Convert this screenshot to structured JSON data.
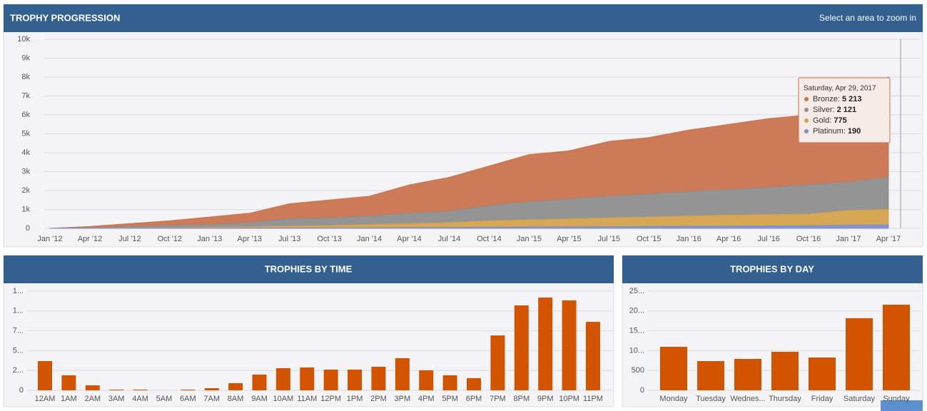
{
  "chart_data": [
    {
      "type": "stacked_area",
      "title": "TROPHY PROGRESSION",
      "hint": "Select an area to zoom in",
      "categories": [
        "Jan '12",
        "Apr '12",
        "Jul '12",
        "Oct '12",
        "Jan '13",
        "Apr '13",
        "Jul '13",
        "Oct '13",
        "Jan '14",
        "Apr '14",
        "Jul '14",
        "Oct '14",
        "Jan '15",
        "Apr '15",
        "Jul '15",
        "Oct '15",
        "Jan '16",
        "Apr '16",
        "Jul '16",
        "Oct '16",
        "Jan '17",
        "Apr '17"
      ],
      "series": [
        {
          "color": "#c9734f",
          "values": [
            0,
            50,
            150,
            250,
            400,
            500,
            800,
            950,
            1050,
            1500,
            1800,
            2100,
            2500,
            2550,
            2900,
            3000,
            3250,
            3450,
            3650,
            3700,
            4550,
            5300
          ]
        },
        {
          "color": "#8e8e8e",
          "values": [
            0,
            40,
            80,
            110,
            140,
            220,
            380,
            400,
            450,
            550,
            600,
            800,
            950,
            1050,
            1150,
            1200,
            1300,
            1350,
            1430,
            1550,
            1500,
            1700
          ]
        },
        {
          "color": "#d4a24c",
          "values": [
            0,
            8,
            15,
            32,
            50,
            65,
            100,
            125,
            170,
            210,
            250,
            340,
            380,
            420,
            460,
            500,
            540,
            580,
            590,
            610,
            780,
            815
          ]
        },
        {
          "color": "#7b8fc9",
          "values": [
            0,
            2,
            5,
            8,
            10,
            15,
            20,
            25,
            30,
            40,
            50,
            60,
            70,
            80,
            90,
            100,
            110,
            120,
            130,
            140,
            170,
            185
          ]
        }
      ],
      "ylim": [
        0,
        10000
      ],
      "yticks": [
        0,
        {
          "value": 1000,
          "label": "1k"
        },
        {
          "value": 2000,
          "label": "2k"
        },
        {
          "value": 3000,
          "label": "3k"
        },
        {
          "value": 4000,
          "label": "4k"
        },
        {
          "value": 5000,
          "label": "5k"
        },
        {
          "value": 6000,
          "label": "6k"
        },
        {
          "value": 7000,
          "label": "7k"
        },
        {
          "value": 8000,
          "label": "8k"
        },
        {
          "value": 9000,
          "label": "9k"
        },
        {
          "value": 10000,
          "label": "10k"
        }
      ],
      "grid": true,
      "tooltip": {
        "title": "Saturday, Apr 29, 2017",
        "items": [
          {
            "label": "Bronze: ",
            "value": "5 213"
          },
          {
            "label": "Silver: ",
            "value": "2 121"
          },
          {
            "label": "Gold: ",
            "value": "775"
          },
          {
            "label": "Platinum: ",
            "value": "190"
          }
        ]
      }
    },
    {
      "type": "bar",
      "title": "TROPHIES BY TIME",
      "color": "#d35400",
      "categories": [
        "12AM",
        "1AM",
        "2AM",
        "3AM",
        "4AM",
        "5AM",
        "6AM",
        "7AM",
        "8AM",
        "9AM",
        "10AM",
        "11AM",
        "12PM",
        "1PM",
        "2PM",
        "3PM",
        "4PM",
        "5PM",
        "6PM",
        "7PM",
        "8PM",
        "9PM",
        "10PM",
        "11PM"
      ],
      "values": [
        369,
        189,
        63,
        9,
        9,
        0,
        9,
        27,
        90,
        198,
        279,
        288,
        261,
        261,
        297,
        405,
        252,
        189,
        153,
        692,
        1070,
        1169,
        1133,
        863
      ],
      "ylim": [
        0,
        1250
      ],
      "yticks": [
        0,
        {
          "value": 250,
          "label": "2..."
        },
        {
          "value": 500,
          "label": "5..."
        },
        {
          "value": 750,
          "label": "7..."
        },
        {
          "value": 1000,
          "label": "1..."
        },
        {
          "value": 1250,
          "label": "1..."
        }
      ],
      "grid": true
    },
    {
      "type": "bar",
      "title": "TROPHIES BY DAY",
      "color": "#d35400",
      "categories": [
        "Monday",
        "Tuesday",
        "Wednes...",
        "Thursday",
        "Friday",
        "Saturday",
        "Sunday"
      ],
      "values": [
        1097,
        737,
        791,
        971,
        827,
        1817,
        2158
      ],
      "ylim": [
        0,
        2500
      ],
      "yticks": [
        0,
        500,
        {
          "value": 1000,
          "label": "10..."
        },
        {
          "value": 1500,
          "label": "15..."
        },
        {
          "value": 2000,
          "label": "20..."
        },
        {
          "value": 2500,
          "label": "25..."
        }
      ],
      "grid": true
    }
  ]
}
